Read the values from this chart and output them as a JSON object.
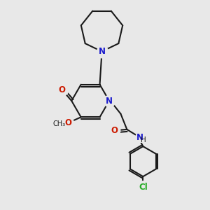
{
  "bg": "#e8e8e8",
  "bc": "#1a1a1a",
  "nc": "#1a1acc",
  "oc": "#cc1a00",
  "clc": "#22aa22",
  "lw": 1.5,
  "fs": 8.0,
  "xlim": [
    0,
    10
  ],
  "ylim": [
    0,
    10
  ]
}
